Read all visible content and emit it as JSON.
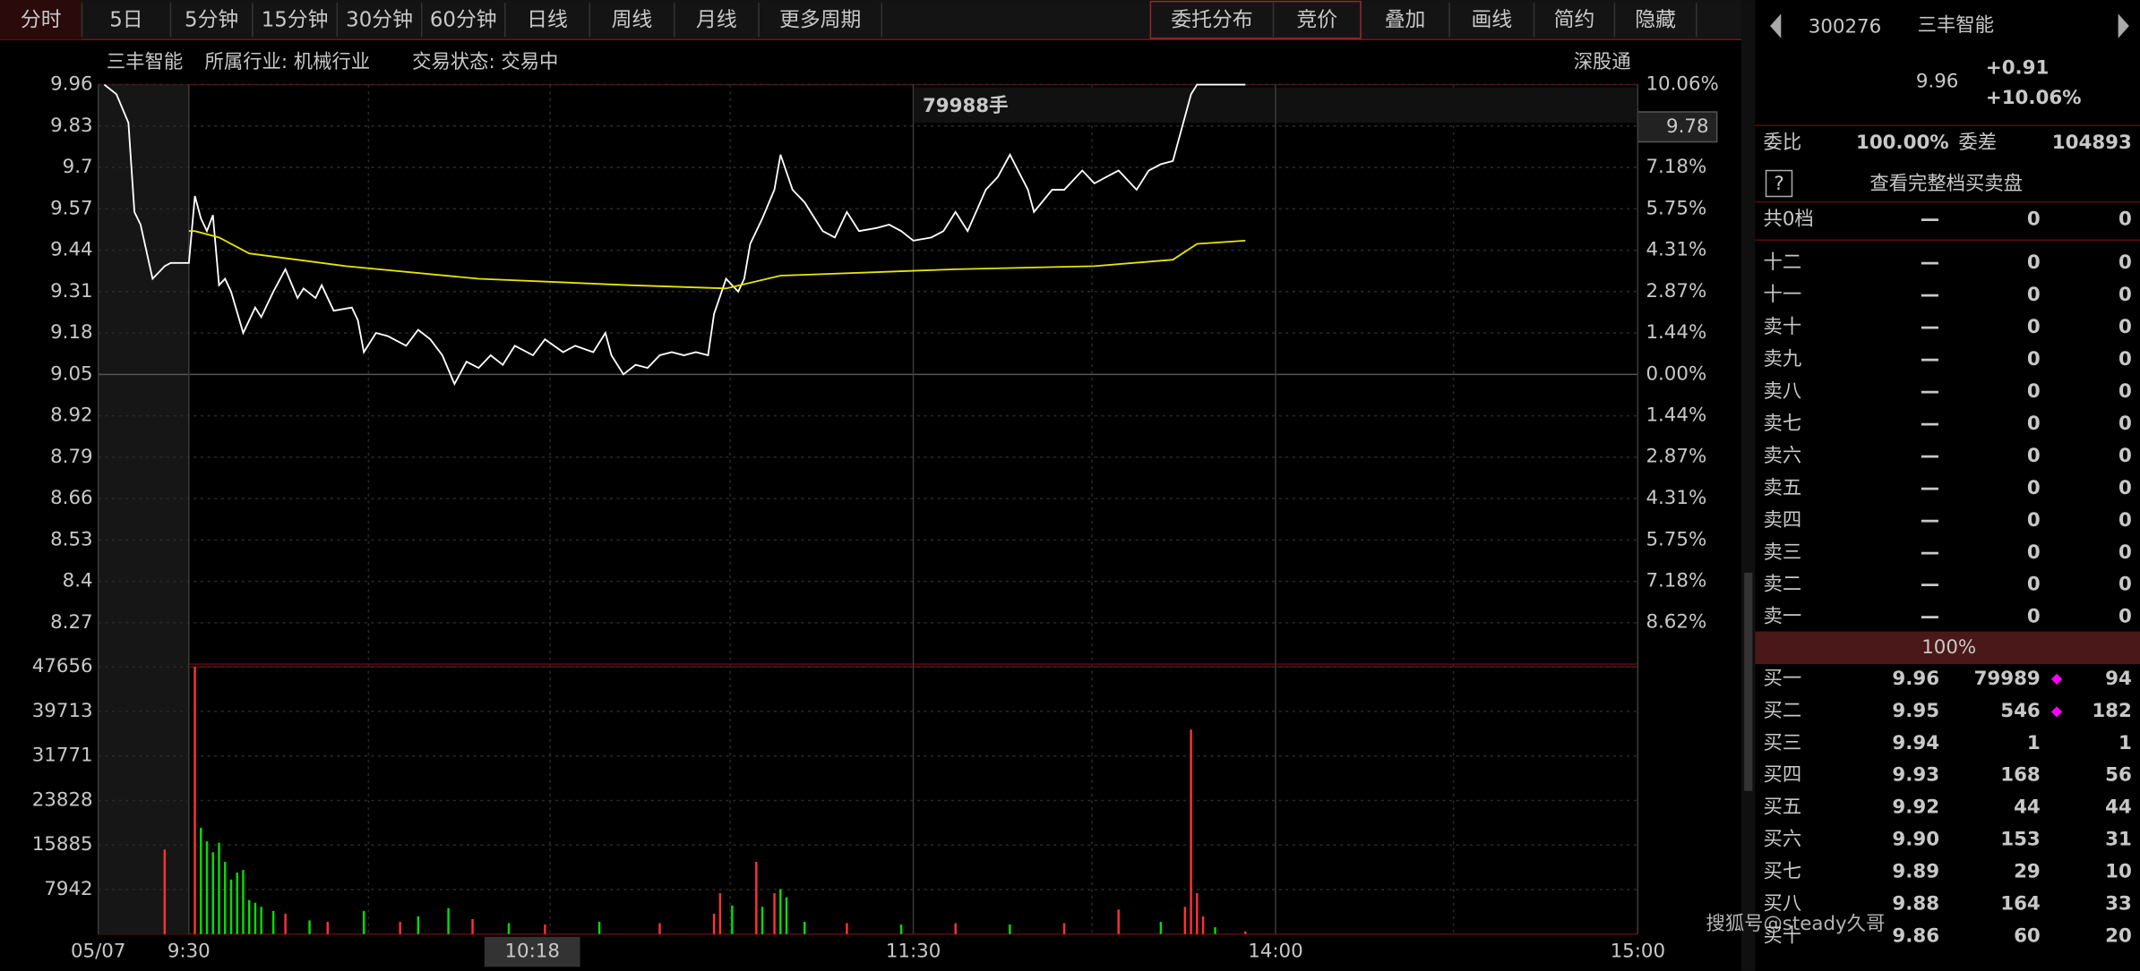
{
  "toolbar": {
    "left": [
      "分时",
      "5日",
      "5分钟",
      "15分钟",
      "30分钟",
      "60分钟",
      "日线",
      "周线",
      "月线",
      "更多周期"
    ],
    "right": [
      "委托分布",
      "竞价",
      "叠加",
      "画线",
      "简约",
      "隐藏"
    ]
  },
  "info": {
    "name": "三丰智能",
    "industry": "所属行业: 机械行业",
    "status": "交易状态: 交易中",
    "connect": "深股通"
  },
  "cursor": {
    "price": "9.78",
    "volume": "79988手",
    "time": "10:18"
  },
  "chart_data": {
    "type": "line",
    "xlim": [
      -15,
      240
    ],
    "xticks": [
      {
        "value": -15,
        "label": "05/07"
      },
      {
        "value": 0,
        "label": "9:30"
      },
      {
        "value": 120,
        "label": "11:30"
      },
      {
        "value": 180,
        "label": "14:00"
      },
      {
        "value": 240,
        "label": "15:00"
      }
    ],
    "ylim": [
      8.14,
      9.96
    ],
    "yticks": [
      9.96,
      9.83,
      9.7,
      9.57,
      9.44,
      9.31,
      9.18,
      9.05,
      8.92,
      8.79,
      8.66,
      8.53,
      8.4,
      8.27
    ],
    "y2lim": [
      -10.06,
      10.06
    ],
    "y2ticks": [
      {
        "value": 10.06,
        "label": "10.06%"
      },
      {
        "value": 7.18,
        "label": "7.18%"
      },
      {
        "value": 5.75,
        "label": "5.75%"
      },
      {
        "value": 4.31,
        "label": "4.31%"
      },
      {
        "value": 2.87,
        "label": "2.87%"
      },
      {
        "value": 1.44,
        "label": "1.44%"
      },
      {
        "value": 0,
        "label": "0.00%"
      },
      {
        "value": -1.44,
        "label": "1.44%"
      },
      {
        "value": -2.87,
        "label": "2.87%"
      },
      {
        "value": -4.31,
        "label": "4.31%"
      },
      {
        "value": -5.75,
        "label": "5.75%"
      },
      {
        "value": -7.18,
        "label": "7.18%"
      },
      {
        "value": -8.62,
        "label": "8.62%"
      }
    ],
    "grid": true,
    "series": [
      {
        "color": "#ffffff",
        "x": [
          -14,
          -12,
          -10,
          -9,
          -8,
          -6,
          -4,
          -3,
          0,
          1,
          2,
          3,
          4,
          5,
          6,
          7,
          9,
          11,
          12,
          14,
          16,
          18,
          19,
          21,
          22,
          24,
          27,
          28,
          29,
          31,
          33,
          36,
          38,
          40,
          42,
          44,
          46,
          48,
          50,
          52,
          54,
          57,
          59,
          62,
          64,
          67,
          69,
          70,
          72,
          74,
          76,
          78,
          80,
          82,
          84,
          86,
          87,
          89,
          91,
          92,
          93,
          95,
          97,
          98,
          100,
          102,
          105,
          107,
          109,
          111,
          114,
          116,
          118,
          120,
          123,
          125,
          127,
          129,
          132,
          134,
          136,
          139,
          140,
          143,
          145,
          148,
          150,
          152,
          154,
          157,
          159,
          161,
          163,
          166,
          167,
          175
        ],
        "values": [
          9.96,
          9.93,
          9.84,
          9.56,
          9.52,
          9.35,
          9.39,
          9.4,
          9.4,
          9.61,
          9.54,
          9.5,
          9.55,
          9.33,
          9.35,
          9.31,
          9.18,
          9.26,
          9.23,
          9.31,
          9.38,
          9.29,
          9.32,
          9.29,
          9.33,
          9.25,
          9.26,
          9.22,
          9.12,
          9.18,
          9.17,
          9.14,
          9.19,
          9.16,
          9.11,
          9.02,
          9.09,
          9.07,
          9.11,
          9.08,
          9.14,
          9.11,
          9.16,
          9.12,
          9.14,
          9.12,
          9.18,
          9.11,
          9.05,
          9.08,
          9.07,
          9.11,
          9.12,
          9.11,
          9.12,
          9.11,
          9.24,
          9.35,
          9.31,
          9.35,
          9.46,
          9.54,
          9.63,
          9.74,
          9.63,
          9.59,
          9.5,
          9.48,
          9.56,
          9.5,
          9.51,
          9.52,
          9.5,
          9.47,
          9.48,
          9.5,
          9.56,
          9.5,
          9.63,
          9.67,
          9.74,
          9.63,
          9.56,
          9.63,
          9.63,
          9.69,
          9.65,
          9.67,
          9.69,
          9.63,
          9.69,
          9.71,
          9.72,
          9.93,
          9.96,
          9.96
        ]
      },
      {
        "color": "#e6e600",
        "x": [
          0,
          1,
          5,
          10,
          26,
          48,
          73,
          89,
          98,
          127,
          150,
          163,
          167,
          175
        ],
        "values": [
          9.5,
          9.5,
          9.48,
          9.43,
          9.39,
          9.35,
          9.33,
          9.32,
          9.36,
          9.38,
          9.39,
          9.41,
          9.46,
          9.47
        ]
      }
    ],
    "volume": {
      "ylim": [
        0,
        47656
      ],
      "yticks": [
        47656,
        39713,
        31771,
        23828,
        15885,
        7942
      ],
      "x": [
        -4,
        1,
        2,
        3,
        4,
        5,
        6,
        7,
        8,
        9,
        10,
        11,
        12,
        14,
        16,
        20,
        23,
        29,
        35,
        38,
        43,
        47,
        53,
        59,
        68,
        78,
        87,
        88,
        90,
        94,
        95,
        97,
        98,
        99,
        102,
        109,
        118,
        127,
        136,
        145,
        154,
        161,
        165,
        166,
        167,
        168,
        170,
        175
      ],
      "values": [
        15075,
        47656,
        18965,
        16534,
        14588,
        16290,
        12886,
        9726,
        10941,
        11428,
        6078,
        5592,
        4863,
        4133,
        3647,
        2431,
        2188,
        4133,
        2188,
        3160,
        4620,
        2675,
        1945,
        1702,
        2188,
        1945,
        3647,
        7294,
        5106,
        12886,
        4863,
        7294,
        8024,
        6565,
        2188,
        1945,
        1702,
        1945,
        1702,
        1945,
        4376,
        2188,
        4863,
        36472,
        7294,
        3160,
        1216,
        486
      ],
      "colors": [
        "#ff3232",
        "#ff3232",
        "#00e000",
        "#00e000",
        "#00e000",
        "#00e000",
        "#00e000",
        "#00e000",
        "#00e000",
        "#00e000",
        "#00e000",
        "#00e000",
        "#00e000",
        "#00e000",
        "#ff3232",
        "#00e000",
        "#ff3232",
        "#00e000",
        "#ff3232",
        "#00e000",
        "#00e000",
        "#ff3232",
        "#00e000",
        "#ff3232",
        "#00e000",
        "#ff3232",
        "#ff3232",
        "#ff3232",
        "#00e000",
        "#ff3232",
        "#00e000",
        "#ff3232",
        "#00e000",
        "#00e000",
        "#00e000",
        "#ff3232",
        "#00e000",
        "#ff3232",
        "#00e000",
        "#ff3232",
        "#ff3232",
        "#00e000",
        "#ff3232",
        "#ff3232",
        "#ff3232",
        "#ff3232",
        "#00e000",
        "#ff3232"
      ]
    }
  },
  "quote": {
    "code": "300276",
    "name": "三丰智能",
    "price": 9.96,
    "change": "+0.91",
    "pct": "+10.06%",
    "ratio_label": "委比",
    "ratio": "100.00%",
    "diff_label": "委差",
    "diff": 104893,
    "help": "?",
    "book_link": "查看完整档买卖盘",
    "total": [
      "共0档",
      "—",
      0,
      0
    ],
    "asks": [
      [
        "十二",
        "—",
        0,
        0
      ],
      [
        "十一",
        "—",
        0,
        0
      ],
      [
        "卖十",
        "—",
        0,
        0
      ],
      [
        "卖九",
        "—",
        0,
        0
      ],
      [
        "卖八",
        "—",
        0,
        0
      ],
      [
        "卖七",
        "—",
        0,
        0
      ],
      [
        "卖六",
        "—",
        0,
        0
      ],
      [
        "卖五",
        "—",
        0,
        0
      ],
      [
        "卖四",
        "—",
        0,
        0
      ],
      [
        "卖三",
        "—",
        0,
        0
      ],
      [
        "卖二",
        "—",
        0,
        0
      ],
      [
        "卖一",
        "—",
        0,
        0
      ]
    ],
    "bar": "100%",
    "bids": [
      [
        "买一",
        "9.96",
        79989,
        94
      ],
      [
        "买二",
        "9.95",
        546,
        182
      ],
      [
        "买三",
        "9.94",
        1,
        1
      ],
      [
        "买四",
        "9.93",
        168,
        56
      ],
      [
        "买五",
        "9.92",
        44,
        44
      ],
      [
        "买六",
        "9.90",
        153,
        31
      ],
      [
        "买七",
        "9.89",
        29,
        10
      ],
      [
        "买八",
        "9.88",
        164,
        33
      ],
      [
        "买十",
        "9.86",
        60,
        20
      ]
    ]
  },
  "watermark": "搜狐号@steady久哥"
}
